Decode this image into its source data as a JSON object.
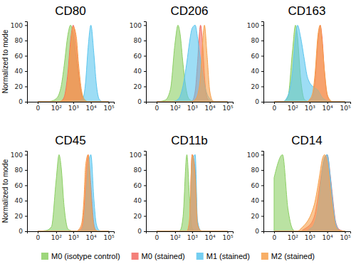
{
  "chart_data": [
    {
      "type": "area",
      "title": "CD80",
      "y_label": "Normalized to mode",
      "log": "x",
      "legend": "bottom",
      "xlim": [
        -30,
        200000
      ],
      "ylim": [
        0,
        105
      ],
      "xticks": [
        0,
        {
          "value": 100,
          "label": "10²"
        },
        {
          "value": 1000,
          "label": "10³"
        },
        {
          "value": 10000,
          "label": "10⁴"
        },
        {
          "value": 100000,
          "label": "10⁵"
        }
      ],
      "yticks": [
        0,
        20,
        40,
        60,
        80,
        100
      ],
      "x": [
        0,
        20,
        50,
        100,
        150,
        200,
        300,
        500,
        700,
        1000,
        1500,
        2000,
        3000,
        4000,
        5000,
        7000,
        10000,
        15000,
        20000,
        30000,
        50000,
        100000
      ],
      "series": [
        {
          "name": "M0 (isotype control)",
          "color": "#8ccf64",
          "values": [
            0,
            0,
            1,
            4,
            10,
            20,
            47,
            88,
            100,
            88,
            55,
            32,
            11,
            4,
            2,
            0,
            0,
            0,
            0,
            0,
            0,
            0
          ]
        },
        {
          "name": "M0 (stained)",
          "color": "#f26a63",
          "values": [
            0,
            0,
            0,
            0,
            0,
            1,
            6,
            39,
            79,
            100,
            72,
            39,
            9,
            2,
            0,
            0,
            0,
            0,
            0,
            0,
            0,
            0
          ]
        },
        {
          "name": "M1 (stained)",
          "color": "#5cc6ef",
          "values": [
            0,
            0,
            0,
            0,
            0,
            0,
            0,
            0,
            0,
            1,
            1,
            1,
            2,
            8,
            25,
            71,
            100,
            61,
            25,
            3,
            0,
            0
          ]
        },
        {
          "name": "M2 (stained)",
          "color": "#f7a04b",
          "values": [
            0,
            0,
            0,
            0,
            0,
            1,
            4,
            30,
            70,
            98,
            85,
            50,
            14,
            4,
            1,
            0,
            0,
            0,
            0,
            0,
            0,
            0
          ]
        }
      ]
    },
    {
      "type": "area",
      "title": "CD206",
      "log": "x",
      "xlim": [
        -30,
        200000
      ],
      "ylim": [
        0,
        105
      ],
      "xticks": [
        0,
        {
          "value": 100,
          "label": "10²"
        },
        {
          "value": 1000,
          "label": "10³"
        },
        {
          "value": 10000,
          "label": "10⁴"
        },
        {
          "value": 100000,
          "label": "10⁵"
        }
      ],
      "yticks": [
        0,
        20,
        40,
        60,
        80,
        100
      ],
      "x": [
        0,
        20,
        50,
        100,
        150,
        200,
        300,
        500,
        700,
        1000,
        1500,
        2000,
        3000,
        4000,
        5000,
        7000,
        10000,
        15000,
        20000,
        30000,
        50000,
        100000
      ],
      "series": [
        {
          "name": "M0 (isotype control)",
          "color": "#8ccf64",
          "values": [
            0,
            2,
            16,
            77,
            100,
            89,
            49,
            11,
            3,
            1,
            0,
            0,
            0,
            0,
            0,
            0,
            0,
            0,
            0,
            0,
            0,
            0
          ]
        },
        {
          "name": "M0 (stained)",
          "color": "#f26a63",
          "values": [
            0,
            0,
            0,
            0,
            0,
            0,
            0,
            0,
            0,
            1,
            14,
            49,
            100,
            73,
            34,
            5,
            1,
            0,
            0,
            0,
            0,
            0
          ]
        },
        {
          "name": "M1 (stained)",
          "color": "#5cc6ef",
          "values": [
            0,
            0,
            0,
            1,
            3,
            7,
            21,
            52,
            77,
            96,
            100,
            85,
            55,
            36,
            23,
            10,
            4,
            1,
            0,
            0,
            0,
            0
          ]
        },
        {
          "name": "M2 (stained)",
          "color": "#f7a04b",
          "values": [
            0,
            0,
            0,
            0,
            0,
            0,
            0,
            0,
            0,
            0,
            3,
            8,
            34,
            80,
            100,
            61,
            14,
            1,
            0,
            0,
            0,
            0
          ]
        }
      ]
    },
    {
      "type": "area",
      "title": "CD163",
      "log": "x",
      "xlim": [
        -30,
        200000
      ],
      "ylim": [
        0,
        105
      ],
      "xticks": [
        0,
        {
          "value": 100,
          "label": "10²"
        },
        {
          "value": 1000,
          "label": "10³"
        },
        {
          "value": 10000,
          "label": "10⁴"
        },
        {
          "value": 100000,
          "label": "10⁵"
        }
      ],
      "yticks": [
        0,
        20,
        40,
        60,
        80,
        100
      ],
      "x": [
        0,
        20,
        50,
        100,
        150,
        200,
        300,
        500,
        700,
        1000,
        1500,
        2000,
        3000,
        4000,
        5000,
        7000,
        10000,
        15000,
        20000,
        30000,
        50000,
        100000
      ],
      "series": [
        {
          "name": "M0 (isotype control)",
          "color": "#8ccf64",
          "values": [
            0,
            0,
            6,
            67,
            100,
            84,
            32,
            3,
            1,
            0,
            0,
            0,
            0,
            0,
            0,
            0,
            0,
            0,
            0,
            0,
            0,
            0
          ]
        },
        {
          "name": "M0 (stained)",
          "color": "#f26a63",
          "values": [
            0,
            0,
            0,
            0,
            0,
            0,
            0,
            0,
            0,
            2,
            7,
            25,
            80,
            100,
            86,
            38,
            8,
            1,
            0,
            0,
            0,
            0
          ]
        },
        {
          "name": "M1 (stained)",
          "color": "#5cc6ef",
          "values": [
            0,
            0,
            8,
            40,
            85,
            100,
            85,
            55,
            35,
            25,
            20,
            18,
            15,
            10,
            6,
            3,
            1,
            0,
            0,
            0,
            0,
            0
          ]
        },
        {
          "name": "M2 (stained)",
          "color": "#f7a04b",
          "values": [
            0,
            0,
            0,
            0,
            0,
            0,
            0,
            0,
            0,
            3,
            12,
            35,
            88,
            100,
            80,
            40,
            10,
            2,
            0,
            0,
            0,
            0
          ]
        }
      ]
    },
    {
      "type": "area",
      "title": "CD45",
      "y_label": "Normalized to mode",
      "log": "x",
      "xlim": [
        -30,
        200000
      ],
      "ylim": [
        0,
        105
      ],
      "xticks": [
        0,
        {
          "value": 100,
          "label": "10²"
        },
        {
          "value": 1000,
          "label": "10³"
        },
        {
          "value": 10000,
          "label": "10⁴"
        },
        {
          "value": 100000,
          "label": "10⁵"
        }
      ],
      "yticks": [
        0,
        20,
        40,
        60,
        80,
        100
      ],
      "x": [
        0,
        20,
        50,
        100,
        150,
        200,
        300,
        500,
        700,
        1000,
        1500,
        2000,
        3000,
        4000,
        5000,
        7000,
        10000,
        15000,
        20000,
        30000,
        50000,
        100000
      ],
      "series": [
        {
          "name": "M0 (isotype control)",
          "color": "#8ccf64",
          "values": [
            0,
            1,
            6,
            67,
            100,
            84,
            32,
            3,
            1,
            0,
            0,
            0,
            0,
            0,
            0,
            0,
            0,
            0,
            0,
            0,
            0,
            0
          ]
        },
        {
          "name": "M0 (stained)",
          "color": "#f26a63",
          "values": [
            0,
            0,
            0,
            0,
            0,
            0,
            0,
            0,
            0,
            0,
            0,
            1,
            5,
            25,
            61,
            100,
            61,
            9,
            1,
            0,
            0,
            0
          ]
        },
        {
          "name": "M1 (stained)",
          "color": "#5cc6ef",
          "values": [
            0,
            0,
            0,
            0,
            0,
            0,
            0,
            0,
            0,
            0,
            0,
            0,
            2,
            10,
            35,
            85,
            100,
            40,
            10,
            1,
            0,
            0
          ]
        },
        {
          "name": "M2 (stained)",
          "color": "#f7a04b",
          "values": [
            0,
            0,
            0,
            0,
            0,
            0,
            0,
            0,
            0,
            0,
            0,
            2,
            10,
            40,
            85,
            100,
            45,
            5,
            1,
            0,
            0,
            0
          ]
        }
      ]
    },
    {
      "type": "area",
      "title": "CD11b",
      "log": "x",
      "xlim": [
        -30,
        200000
      ],
      "ylim": [
        0,
        105
      ],
      "xticks": [
        0,
        {
          "value": 100,
          "label": "10²"
        },
        {
          "value": 1000,
          "label": "10³"
        },
        {
          "value": 10000,
          "label": "10⁴"
        },
        {
          "value": 100000,
          "label": "10⁵"
        }
      ],
      "yticks": [
        0,
        20,
        40,
        60,
        80,
        100
      ],
      "x": [
        0,
        20,
        50,
        100,
        150,
        200,
        300,
        500,
        700,
        1000,
        1500,
        2000,
        3000,
        4000,
        5000,
        7000,
        10000,
        15000,
        20000,
        30000,
        50000,
        100000
      ],
      "series": [
        {
          "name": "M0 (isotype control)",
          "color": "#8ccf64",
          "values": [
            0,
            0,
            0,
            0,
            0,
            1,
            19,
            100,
            46,
            4,
            0,
            0,
            0,
            0,
            0,
            0,
            0,
            0,
            0,
            0,
            0,
            0
          ]
        },
        {
          "name": "M0 (stained)",
          "color": "#f26a63",
          "values": [
            0,
            0,
            0,
            0,
            0,
            0,
            0,
            0,
            10,
            100,
            80,
            12,
            1,
            0,
            0,
            0,
            0,
            0,
            0,
            0,
            0,
            0
          ]
        },
        {
          "name": "M1 (stained)",
          "color": "#5cc6ef",
          "values": [
            0,
            0,
            0,
            0,
            0,
            0,
            0,
            0,
            6,
            92,
            100,
            15,
            1,
            0,
            0,
            0,
            0,
            0,
            0,
            0,
            0,
            0
          ]
        },
        {
          "name": "M2 (stained)",
          "color": "#f7a04b",
          "values": [
            0,
            0,
            0,
            0,
            0,
            0,
            0,
            0,
            14,
            100,
            70,
            9,
            1,
            0,
            0,
            0,
            0,
            0,
            0,
            0,
            0,
            0
          ]
        }
      ]
    },
    {
      "type": "area",
      "title": "CD14",
      "log": "x",
      "xlim": [
        -30,
        200000
      ],
      "ylim": [
        0,
        105
      ],
      "xticks": [
        0,
        {
          "value": 100,
          "label": "10²"
        },
        {
          "value": 1000,
          "label": "10³"
        },
        {
          "value": 10000,
          "label": "10⁴"
        },
        {
          "value": 100000,
          "label": "10⁵"
        }
      ],
      "yticks": [
        0,
        20,
        40,
        60,
        80,
        100
      ],
      "x": [
        0,
        20,
        50,
        100,
        150,
        200,
        300,
        500,
        700,
        1000,
        1500,
        2000,
        3000,
        4000,
        5000,
        7000,
        10000,
        15000,
        20000,
        30000,
        50000,
        100000
      ],
      "series": [
        {
          "name": "M0 (isotype control)",
          "color": "#8ccf64",
          "values": [
            70,
            100,
            30,
            3,
            0,
            0,
            0,
            0,
            0,
            0,
            0,
            0,
            0,
            0,
            0,
            0,
            0,
            0,
            0,
            0,
            0,
            0
          ]
        },
        {
          "name": "M0 (stained)",
          "color": "#f26a63",
          "values": [
            0,
            0,
            0,
            0,
            0,
            0,
            0,
            3,
            5,
            8,
            14,
            22,
            45,
            65,
            80,
            95,
            100,
            72,
            45,
            12,
            2,
            0
          ]
        },
        {
          "name": "M1 (stained)",
          "color": "#5cc6ef",
          "values": [
            0,
            0,
            0,
            0,
            0,
            0,
            0,
            0,
            0,
            3,
            6,
            12,
            30,
            55,
            78,
            97,
            100,
            70,
            40,
            10,
            1,
            0
          ]
        },
        {
          "name": "M2 (stained)",
          "color": "#f7a04b",
          "values": [
            0,
            0,
            0,
            0,
            0,
            0,
            3,
            8,
            12,
            18,
            28,
            38,
            60,
            78,
            92,
            100,
            90,
            55,
            30,
            6,
            1,
            0
          ]
        }
      ]
    }
  ]
}
